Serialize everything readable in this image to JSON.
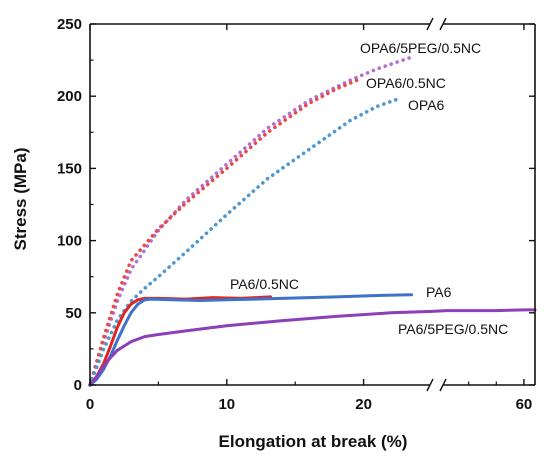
{
  "chart_data": {
    "type": "line",
    "xlabel": "Elongation at break (%)",
    "ylabel": "Stress (MPa)",
    "xlim": [
      0,
      62
    ],
    "ylim": [
      0,
      250
    ],
    "x_axis_break": {
      "from": 25,
      "to": 45
    },
    "x_ticks": [
      0,
      10,
      20,
      60
    ],
    "y_ticks": [
      0,
      50,
      100,
      150,
      200,
      250
    ],
    "grid": false,
    "legend": "inline labels next to each curve",
    "series": [
      {
        "name": "OPA6/5PEG/0.5NC",
        "color": "#b36fd1",
        "style": "dotted",
        "x": [
          0,
          1,
          2,
          3,
          5,
          7,
          10,
          13,
          16,
          19,
          21,
          23.5
        ],
        "y": [
          0,
          30,
          58,
          80,
          107,
          128,
          153,
          178,
          197,
          211,
          219,
          227
        ]
      },
      {
        "name": "OPA6/0.5NC",
        "color": "#e84a4a",
        "style": "dotted",
        "x": [
          0,
          1,
          2,
          3,
          5,
          7,
          10,
          13,
          16,
          18,
          19.5
        ],
        "y": [
          0,
          33,
          63,
          86,
          108,
          126,
          150,
          175,
          195,
          205,
          211
        ]
      },
      {
        "name": "OPA6",
        "color": "#4f97cf",
        "style": "dotted",
        "x": [
          0,
          1,
          2,
          3,
          4,
          5,
          7,
          10,
          13,
          16,
          19,
          21,
          22.5
        ],
        "y": [
          0,
          25,
          45,
          58,
          67,
          75,
          92,
          118,
          143,
          163,
          183,
          193,
          198
        ]
      },
      {
        "name": "PA6/0.5NC",
        "color": "#e02424",
        "style": "solid",
        "x": [
          0,
          0.5,
          1,
          1.5,
          2,
          2.5,
          3,
          3.5,
          4,
          5,
          7,
          9,
          11,
          13.2
        ],
        "y": [
          0,
          6,
          15,
          27,
          40,
          50,
          56,
          59,
          60,
          60,
          59.5,
          60.5,
          60,
          61
        ]
      },
      {
        "name": "PA6",
        "color": "#3f73c9",
        "style": "solid",
        "x": [
          0,
          0.5,
          1,
          1.5,
          2,
          2.5,
          3,
          3.5,
          4,
          4.5,
          6,
          8,
          10,
          14,
          18,
          21,
          23.5
        ],
        "y": [
          0,
          4,
          11,
          20,
          31,
          41,
          50,
          56,
          59,
          59.5,
          59,
          58.5,
          59,
          60,
          61,
          62,
          62.5
        ]
      },
      {
        "name": "PA6/5PEG/0.5NC",
        "color": "#8b3fb8",
        "style": "solid",
        "x": [
          0,
          0.5,
          1,
          1.5,
          2,
          3,
          4,
          5,
          7,
          10,
          14,
          18,
          22,
          25,
          46,
          50,
          55,
          60,
          62
        ],
        "y": [
          0,
          6,
          13,
          19,
          24,
          30,
          33.5,
          35,
          37.5,
          41,
          44.5,
          47.5,
          50,
          51,
          51.5,
          51.5,
          51.5,
          52,
          52
        ]
      }
    ],
    "labels": [
      {
        "series": "OPA6/5PEG/0.5NC",
        "text": "OPA6/5PEG/0.5NC"
      },
      {
        "series": "OPA6/0.5NC",
        "text": "OPA6/0.5NC"
      },
      {
        "series": "OPA6",
        "text": "OPA6"
      },
      {
        "series": "PA6/0.5NC",
        "text": "PA6/0.5NC"
      },
      {
        "series": "PA6",
        "text": "PA6"
      },
      {
        "series": "PA6/5PEG/0.5NC",
        "text": "PA6/5PEG/0.5NC"
      }
    ]
  }
}
